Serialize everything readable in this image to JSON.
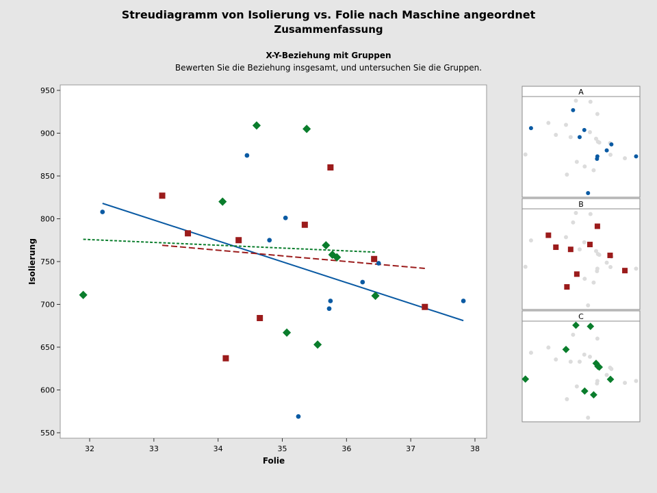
{
  "header": {
    "title": "Streudiagramm von Isolierung vs. Folie nach Maschine angeordnet",
    "subtitle": "Zusammenfassung",
    "section_heading": "X-Y-Beziehung mit Gruppen",
    "section_description": "Bewerten Sie die Beziehung insgesamt, und untersuchen Sie die Gruppen."
  },
  "chart_data": [
    {
      "type": "scatter",
      "xlabel": "Folie",
      "ylabel": "Isolierung",
      "xlim": [
        31.5,
        38.1
      ],
      "ylim": [
        540,
        955
      ],
      "x_ticks": [
        "32",
        "33",
        "34",
        "35",
        "36",
        "37",
        "38"
      ],
      "y_ticks": [
        "550",
        "600",
        "650",
        "700",
        "750",
        "800",
        "850",
        "900",
        "950"
      ],
      "x_tick_values": [
        32,
        33,
        34,
        35,
        36,
        37,
        38
      ],
      "y_tick_values": [
        550,
        600,
        650,
        700,
        750,
        800,
        850,
        900,
        950
      ],
      "grid": false,
      "series": [
        {
          "name": "A",
          "color": "#0a5aa3",
          "marker": "circle",
          "points": [
            [
              32.2,
              808
            ],
            [
              34.45,
              874
            ],
            [
              34.8,
              775
            ],
            [
              35.05,
              801
            ],
            [
              35.25,
              569
            ],
            [
              35.75,
              704
            ],
            [
              35.73,
              695
            ],
            [
              36.25,
              726
            ],
            [
              36.5,
              748
            ],
            [
              37.82,
              704
            ]
          ],
          "fit": [
            [
              32.2,
              818
            ],
            [
              37.82,
              681
            ]
          ]
        },
        {
          "name": "B",
          "color": "#9b1b1b",
          "marker": "square",
          "points": [
            [
              33.13,
              827
            ],
            [
              33.53,
              783
            ],
            [
              34.12,
              637
            ],
            [
              34.32,
              775
            ],
            [
              34.65,
              684
            ],
            [
              35.35,
              793
            ],
            [
              35.75,
              860
            ],
            [
              36.43,
              753
            ],
            [
              37.22,
              697
            ]
          ],
          "fit": [
            [
              33.13,
              769
            ],
            [
              37.22,
              742
            ]
          ]
        },
        {
          "name": "C",
          "color": "#0a7d2c",
          "marker": "diamond",
          "points": [
            [
              31.9,
              711
            ],
            [
              34.07,
              820
            ],
            [
              34.6,
              909
            ],
            [
              35.07,
              667
            ],
            [
              35.38,
              905
            ],
            [
              35.55,
              653
            ],
            [
              35.68,
              769
            ],
            [
              35.78,
              758
            ],
            [
              35.85,
              755
            ],
            [
              36.45,
              710
            ]
          ],
          "fit": [
            [
              31.9,
              776
            ],
            [
              36.45,
              761
            ]
          ]
        }
      ]
    }
  ],
  "panels": [
    {
      "label": "A"
    },
    {
      "label": "B"
    },
    {
      "label": "C"
    }
  ]
}
